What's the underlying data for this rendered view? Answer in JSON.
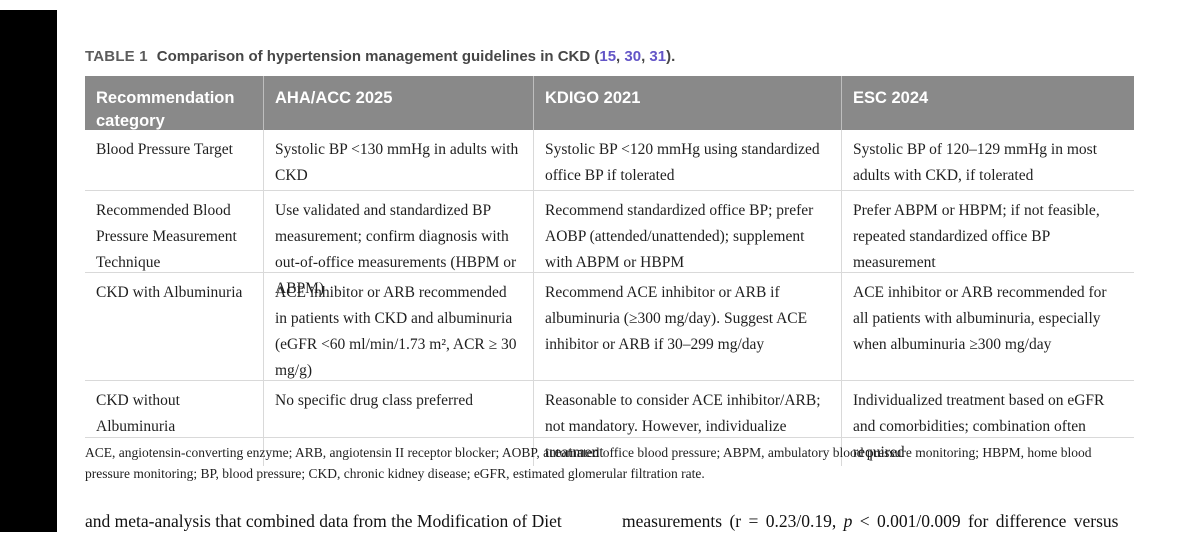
{
  "caption": {
    "label": "TABLE 1",
    "title": "Comparison of hypertension management guidelines in CKD (",
    "ref1": "15",
    "ref2": "30",
    "ref3": "31",
    "sep": ", ",
    "close": ")."
  },
  "table": {
    "columns": [
      "Recommendation category",
      "AHA/ACC 2025",
      "KDIGO 2021",
      "ESC 2024"
    ],
    "rows": [
      [
        "Blood Pressure Target",
        "Systolic BP <130 mmHg in adults with CKD",
        "Systolic BP <120 mmHg using standardized office BP if tolerated",
        "Systolic BP of 120–129 mmHg in most adults with CKD, if tolerated"
      ],
      [
        "Recommended Blood Pressure Measurement Technique",
        "Use validated and standardized BP measurement; confirm diagnosis with out-of-office measurements (HBPM or ABPM)",
        "Recommend standardized office BP; prefer AOBP (attended/unattended); supplement with ABPM or HBPM",
        "Prefer ABPM or HBPM; if not feasible, repeated standardized office BP measurement"
      ],
      [
        "CKD with Albuminuria",
        "ACE inhibitor or ARB recommended in patients with CKD and albuminuria (eGFR <60 ml/min/1.73 m², ACR ≥ 30 mg/g)",
        "Recommend ACE inhibitor or ARB if albuminuria (≥300 mg/day). Suggest ACE inhibitor or ARB if 30–299 mg/day",
        "ACE inhibitor or ARB recommended for all patients with albuminuria, especially when albuminuria ≥300 mg/day"
      ],
      [
        "CKD without Albuminuria",
        "No specific drug class preferred",
        "Reasonable to consider ACE inhibitor/ARB; not mandatory. However, individualize treatment",
        "Individualized treatment based on eGFR and comorbidities; combination often required"
      ]
    ]
  },
  "footnote": "ACE, angiotensin-converting enzyme; ARB, angiotensin II receptor blocker; AOBP, automated office blood pressure; ABPM, ambulatory blood pressure monitoring; HBPM, home blood pressure monitoring; BP, blood pressure; CKD, chronic kidney disease; eGFR, estimated glomerular filtration rate.",
  "body_text": {
    "left": "and meta-analysis that combined data from the Modification of Diet",
    "right_pre": "measurements (r = 0.23/0.19, ",
    "right_p": "p",
    "right_post": " < 0.001/0.009 for difference versus"
  }
}
